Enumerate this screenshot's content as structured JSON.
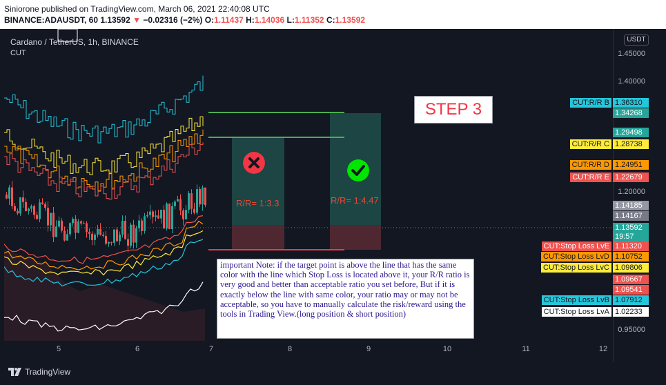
{
  "header": {
    "publisher": "Siniorone published on TradingView.com, March 06, 2021 22:40:08 UTC",
    "symbol": "BINANCE:ADAUSDT, 60",
    "last": "1.13592",
    "change_arrow": "▼",
    "change": "−0.02316 (−2%)",
    "o_label": "O:",
    "o": "1.11437",
    "h_label": "H:",
    "h": "1.14036",
    "l_label": "L:",
    "l": "1.11352",
    "c_label": "C:",
    "c": "1.13592"
  },
  "legend": {
    "title": "Cardano / TetherUS, 1h, BINANCE",
    "indicator": "CUT"
  },
  "currency_button": "USDT",
  "y_ticks": [
    "1.45000",
    "1.40000",
    "1.20000",
    "0.95000"
  ],
  "x_ticks": [
    "5",
    "6",
    "7",
    "8",
    "9",
    "10",
    "11",
    "12"
  ],
  "price_labels": [
    {
      "name": "CUT:R/R B",
      "value": "1.36310",
      "color": "#26c6da",
      "text": "#131722"
    },
    {
      "name": "",
      "value": "1.34268",
      "color": "#26a69a",
      "text": "#ffffff"
    },
    {
      "name": "",
      "value": "1.29498",
      "color": "#26a69a",
      "text": "#ffffff"
    },
    {
      "name": "CUT:R/R C",
      "value": "1.28738",
      "color": "#ffeb3b",
      "text": "#131722"
    },
    {
      "name": "CUT:R/R D",
      "value": "1.24951",
      "color": "#ff9800",
      "text": "#131722"
    },
    {
      "name": "CUT:R/R E",
      "value": "1.22679",
      "color": "#ef5350",
      "text": "#ffffff"
    },
    {
      "name": "",
      "value": "1.14185",
      "color": "#9598a1",
      "text": "#ffffff"
    },
    {
      "name": "",
      "value": "1.14167",
      "color": "#787b86",
      "text": "#ffffff"
    },
    {
      "name": "",
      "value": "1.13592",
      "color": "#26a69a",
      "text": "#ffffff"
    },
    {
      "name": "",
      "value": "19:57",
      "color": "#26a69a",
      "text": "#ffffff"
    },
    {
      "name": "CUT:Stop Loss LvE",
      "value": "1.11320",
      "color": "#ef5350",
      "text": "#ffffff"
    },
    {
      "name": "CUT:Stop Loss LvD",
      "value": "1.10752",
      "color": "#ff9800",
      "text": "#131722"
    },
    {
      "name": "CUT:Stop Loss LvC",
      "value": "1.09806",
      "color": "#ffeb3b",
      "text": "#131722"
    },
    {
      "name": "",
      "value": "1.09667",
      "color": "#ef5350",
      "text": "#ffffff"
    },
    {
      "name": "",
      "value": "1.09541",
      "color": "#ef5350",
      "text": "#ffffff"
    },
    {
      "name": "CUT:Stop Loss LvB",
      "value": "1.07912",
      "color": "#26c6da",
      "text": "#131722"
    },
    {
      "name": "CUT:Stop Loss LvA",
      "value": "1.02233",
      "color": "#ffffff",
      "text": "#131722"
    }
  ],
  "annotations": {
    "step": "STEP 3",
    "rr_left": "R/R= 1:3.3",
    "rr_right": "R/R= 1:4.47",
    "note": "important Note: if the target point is above the line that has the same color with the line  which Stop Loss is located above it, your R/R ratio is very good and better than acceptable ratio you set before, But if it is exactly below the line with same color, your ratio may or may not be acceptable, so you have to manually calculate the risk/reward using the tools in Trading View.(long position & short position)"
  },
  "footer": {
    "brand": "TradingView"
  },
  "colors": {
    "up": "#26a69a",
    "down": "#ef5350",
    "bg": "#131722",
    "green_line": "#4caf50",
    "red_line": "#f23645"
  }
}
